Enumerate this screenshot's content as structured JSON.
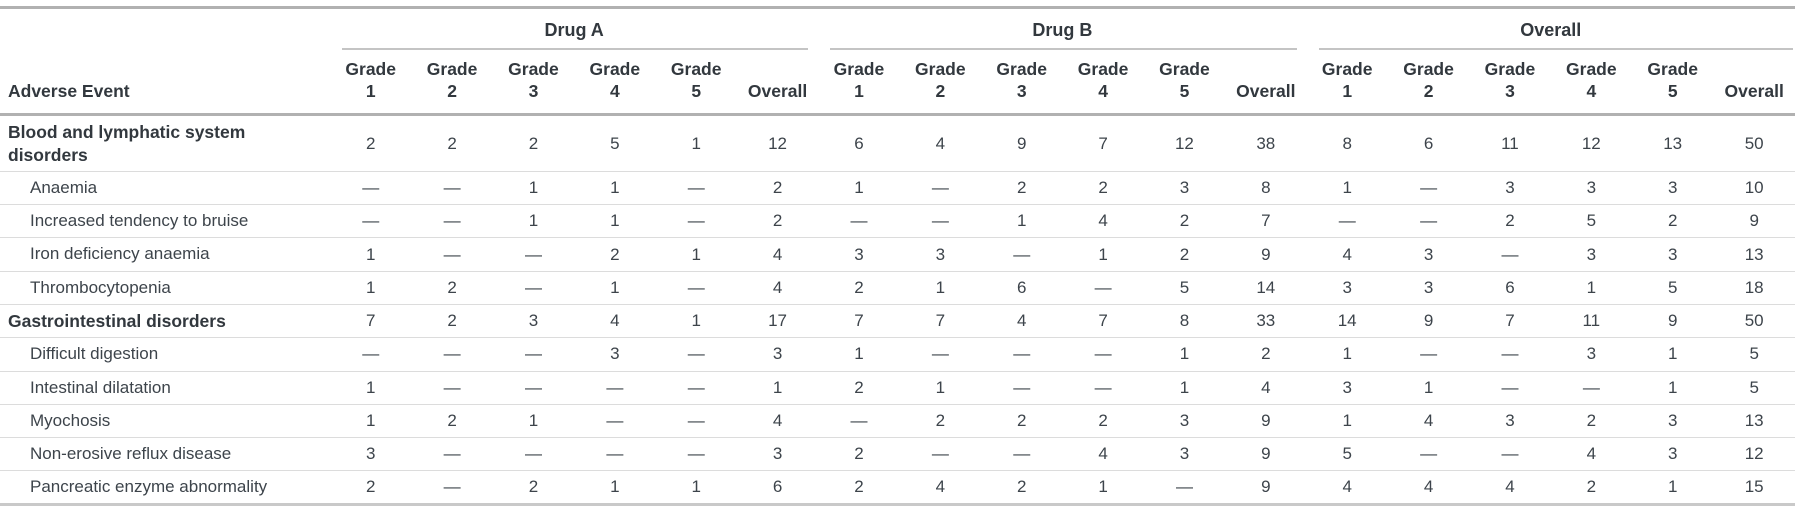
{
  "colors": {
    "background": "#ffffff",
    "text_strong": "#32383e",
    "text_body": "#3d444b",
    "rule_heavy": "#b1b1b1",
    "rule_light": "#dcdcdc",
    "rule_group": "#c4c4c4",
    "rule_bottom": "#c9c9c9"
  },
  "chart_data": {
    "type": "table",
    "title": "",
    "row_header": "Adverse Event",
    "column_groups": [
      "Drug A",
      "Drug B",
      "Overall"
    ],
    "sub_columns": [
      "Grade 1",
      "Grade 2",
      "Grade 3",
      "Grade 4",
      "Grade 5",
      "Overall"
    ],
    "empty_cell_marker": "—",
    "layout_hints": {
      "grid": "horizontal-rules-only",
      "group_header_underlined": true,
      "numeric_alignment": "center"
    },
    "rows": [
      {
        "label": "Blood and lymphatic system disorders",
        "is_group": true,
        "values": {
          "drug_a": [
            2,
            2,
            2,
            5,
            1,
            12
          ],
          "drug_b": [
            6,
            4,
            9,
            7,
            12,
            38
          ],
          "overall": [
            8,
            6,
            11,
            12,
            13,
            50
          ]
        }
      },
      {
        "label": "Anaemia",
        "is_group": false,
        "values": {
          "drug_a": [
            "—",
            "—",
            1,
            1,
            "—",
            2
          ],
          "drug_b": [
            1,
            "—",
            2,
            2,
            3,
            8
          ],
          "overall": [
            1,
            "—",
            3,
            3,
            3,
            10
          ]
        }
      },
      {
        "label": "Increased tendency to bruise",
        "is_group": false,
        "values": {
          "drug_a": [
            "—",
            "—",
            1,
            1,
            "—",
            2
          ],
          "drug_b": [
            "—",
            "—",
            1,
            4,
            2,
            7
          ],
          "overall": [
            "—",
            "—",
            2,
            5,
            2,
            9
          ]
        }
      },
      {
        "label": "Iron deficiency anaemia",
        "is_group": false,
        "values": {
          "drug_a": [
            1,
            "—",
            "—",
            2,
            1,
            4
          ],
          "drug_b": [
            3,
            3,
            "—",
            1,
            2,
            9
          ],
          "overall": [
            4,
            3,
            "—",
            3,
            3,
            13
          ]
        }
      },
      {
        "label": "Thrombocytopenia",
        "is_group": false,
        "values": {
          "drug_a": [
            1,
            2,
            "—",
            1,
            "—",
            4
          ],
          "drug_b": [
            2,
            1,
            6,
            "—",
            5,
            14
          ],
          "overall": [
            3,
            3,
            6,
            1,
            5,
            18
          ]
        }
      },
      {
        "label": "Gastrointestinal disorders",
        "is_group": true,
        "values": {
          "drug_a": [
            7,
            2,
            3,
            4,
            1,
            17
          ],
          "drug_b": [
            7,
            7,
            4,
            7,
            8,
            33
          ],
          "overall": [
            14,
            9,
            7,
            11,
            9,
            50
          ]
        }
      },
      {
        "label": "Difficult digestion",
        "is_group": false,
        "values": {
          "drug_a": [
            "—",
            "—",
            "—",
            3,
            "—",
            3
          ],
          "drug_b": [
            1,
            "—",
            "—",
            "—",
            1,
            2
          ],
          "overall": [
            1,
            "—",
            "—",
            3,
            1,
            5
          ]
        }
      },
      {
        "label": "Intestinal dilatation",
        "is_group": false,
        "values": {
          "drug_a": [
            1,
            "—",
            "—",
            "—",
            "—",
            1
          ],
          "drug_b": [
            2,
            1,
            "—",
            "—",
            1,
            4
          ],
          "overall": [
            3,
            1,
            "—",
            "—",
            1,
            5
          ]
        }
      },
      {
        "label": "Myochosis",
        "is_group": false,
        "values": {
          "drug_a": [
            1,
            2,
            1,
            "—",
            "—",
            4
          ],
          "drug_b": [
            "—",
            2,
            2,
            2,
            3,
            9
          ],
          "overall": [
            1,
            4,
            3,
            2,
            3,
            13
          ]
        }
      },
      {
        "label": "Non-erosive reflux disease",
        "is_group": false,
        "values": {
          "drug_a": [
            3,
            "—",
            "—",
            "—",
            "—",
            3
          ],
          "drug_b": [
            2,
            "—",
            "—",
            4,
            3,
            9
          ],
          "overall": [
            5,
            "—",
            "—",
            4,
            3,
            12
          ]
        }
      },
      {
        "label": "Pancreatic enzyme abnormality",
        "is_group": false,
        "values": {
          "drug_a": [
            2,
            "—",
            2,
            1,
            1,
            6
          ],
          "drug_b": [
            2,
            4,
            2,
            1,
            "—",
            9
          ],
          "overall": [
            4,
            4,
            4,
            2,
            1,
            15
          ]
        }
      }
    ]
  }
}
